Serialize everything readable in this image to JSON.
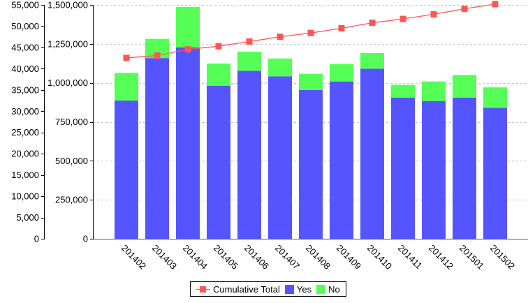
{
  "chart_data": {
    "type": "bar",
    "stacked": true,
    "categories": [
      "201402",
      "201403",
      "201404",
      "201405",
      "201406",
      "201407",
      "201408",
      "201409",
      "201410",
      "201411",
      "201412",
      "201501",
      "201502"
    ],
    "series": [
      {
        "name": "Yes",
        "axis": "left",
        "color": "#5555ff",
        "values": [
          32500,
          42500,
          45000,
          36000,
          39500,
          38200,
          35000,
          37000,
          40000,
          33200,
          32400,
          33200,
          30800
        ]
      },
      {
        "name": "No",
        "axis": "left",
        "color": "#55ff55",
        "values": [
          6500,
          4500,
          9500,
          5200,
          4500,
          4200,
          3800,
          4100,
          3700,
          3000,
          4600,
          5300,
          4800
        ]
      },
      {
        "name": "Cumulative Total",
        "type": "line",
        "axis": "right",
        "color": "#ff5555",
        "values": [
          1160000,
          1175000,
          1215000,
          1235000,
          1265000,
          1295000,
          1320000,
          1350000,
          1385000,
          1410000,
          1440000,
          1475000,
          1505000
        ]
      }
    ],
    "left_axis": {
      "ylim": [
        0,
        55000
      ],
      "ticks": [
        0,
        5000,
        10000,
        15000,
        20000,
        25000,
        30000,
        35000,
        40000,
        45000,
        50000,
        55000
      ],
      "tick_labels": [
        "0",
        "5,000",
        "10,000",
        "15,000",
        "20,000",
        "25,000",
        "30,000",
        "35,000",
        "40,000",
        "45,000",
        "50,000",
        "55,000"
      ]
    },
    "right_axis": {
      "ylim": [
        0,
        1500000
      ],
      "ticks": [
        0,
        250000,
        500000,
        750000,
        1000000,
        1250000,
        1500000
      ],
      "tick_labels": [
        "0",
        "250,000",
        "500,000",
        "750,000",
        "1,000,000",
        "1,250,000",
        "1,500,000"
      ]
    },
    "title": "",
    "xlabel": "",
    "ylabel": "",
    "grid": true,
    "legend_position": "bottom",
    "legend": [
      "Cumulative Total",
      "Yes",
      "No"
    ]
  }
}
